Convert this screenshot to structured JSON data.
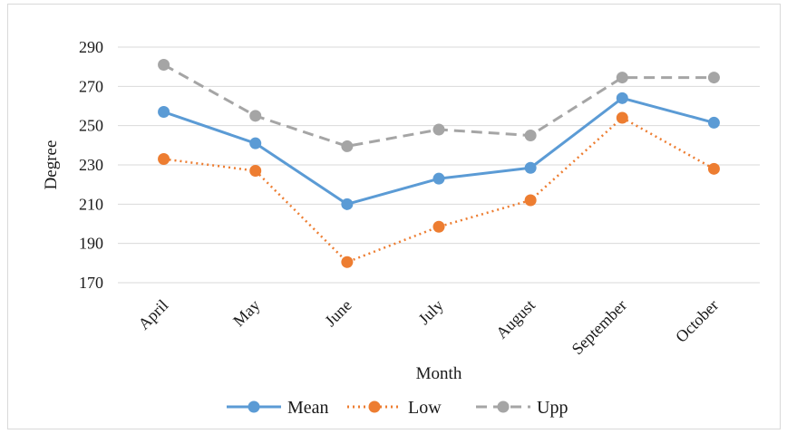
{
  "chart_data": {
    "type": "line",
    "title": "",
    "xlabel": "Month",
    "ylabel": "Degree",
    "categories": [
      "April",
      "May",
      "June",
      "July",
      "August",
      "September",
      "October"
    ],
    "ylim": [
      170,
      290
    ],
    "yticks": [
      170,
      190,
      210,
      230,
      250,
      270,
      290
    ],
    "grid": true,
    "legend_position": "bottom",
    "series": [
      {
        "name": "Mean",
        "values": [
          257,
          241,
          210,
          223,
          228.5,
          264,
          251.5
        ],
        "color": "#5b9bd5",
        "line_style": "solid"
      },
      {
        "name": "Low",
        "values": [
          233,
          227,
          180.5,
          198.5,
          212,
          254,
          228
        ],
        "color": "#ed7d31",
        "line_style": "dotted"
      },
      {
        "name": "Upp",
        "values": [
          281,
          255,
          239.5,
          248,
          245,
          274.5,
          274.5
        ],
        "color": "#a5a5a5",
        "line_style": "dashed"
      }
    ]
  }
}
